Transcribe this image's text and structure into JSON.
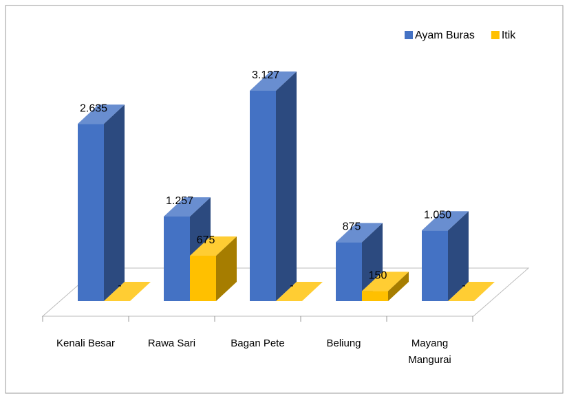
{
  "chart_data": {
    "type": "bar3d",
    "categories": [
      "Kenali Besar",
      "Rawa Sari",
      "Bagan Pete",
      "Beliung",
      "Mayang Mangurai"
    ],
    "series": [
      {
        "name": "Ayam Buras",
        "color": "#4472c4",
        "values": [
          2635,
          1257,
          3127,
          875,
          1050
        ],
        "value_labels": [
          "2.635",
          "1.257",
          "3.127",
          "875",
          "1.050"
        ]
      },
      {
        "name": "Itik",
        "color": "#ffc000",
        "values": [
          0,
          675,
          0,
          150,
          0
        ],
        "value_labels": [
          "-",
          "675",
          "-",
          "150",
          "-"
        ]
      }
    ],
    "legend": "top-right"
  }
}
